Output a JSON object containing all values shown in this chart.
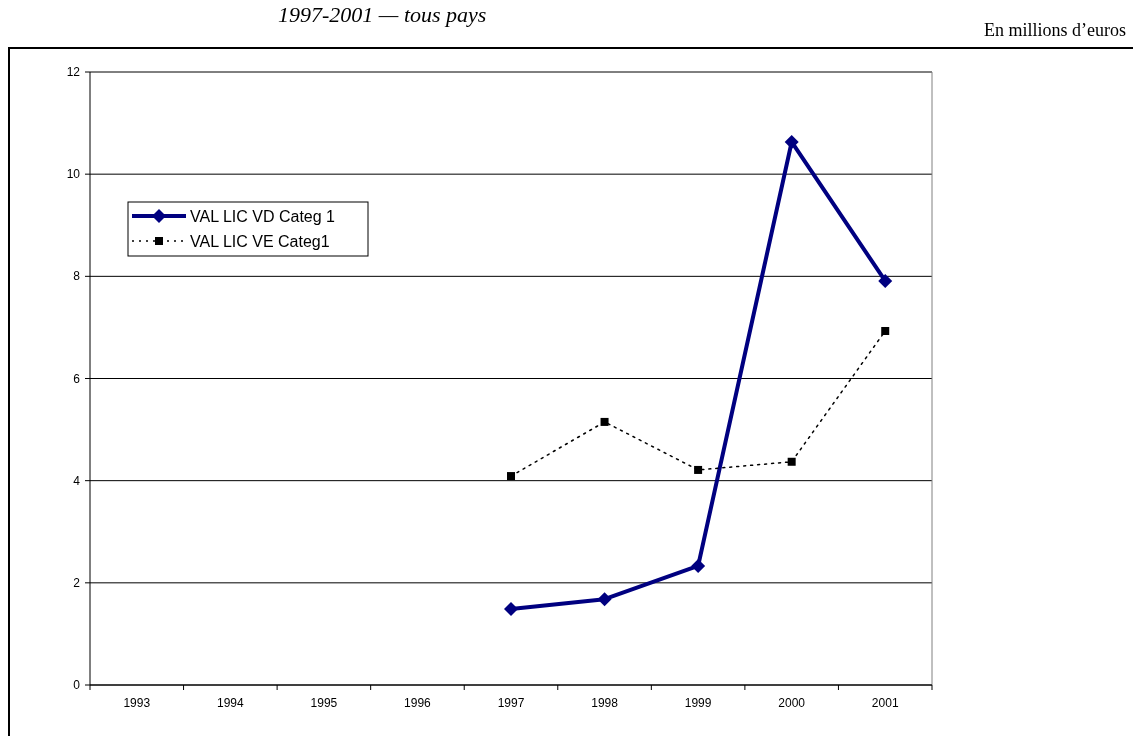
{
  "chart_data": {
    "type": "line",
    "title": "1997-2001 — tous pays",
    "annotations": [
      "En millions d’euros"
    ],
    "categories": [
      "1993",
      "1994",
      "1995",
      "1996",
      "1997",
      "1998",
      "1999",
      "2000",
      "2001"
    ],
    "series": [
      {
        "name": "VAL LIC VD Categ 1",
        "color": "#000080",
        "marker": "diamond",
        "line_style": "solid",
        "values": [
          null,
          null,
          null,
          null,
          1.49,
          1.68,
          2.33,
          10.63,
          7.91
        ]
      },
      {
        "name": "VAL LIC VE Categ1",
        "color": "#000000",
        "marker": "square",
        "line_style": "dotted",
        "values": [
          null,
          null,
          null,
          null,
          4.09,
          5.15,
          4.21,
          4.37,
          6.93
        ]
      }
    ],
    "ylim": [
      0,
      12
    ],
    "yticks": [
      0,
      2,
      4,
      6,
      8,
      10,
      12
    ],
    "grid": "y",
    "legend": "top left"
  }
}
